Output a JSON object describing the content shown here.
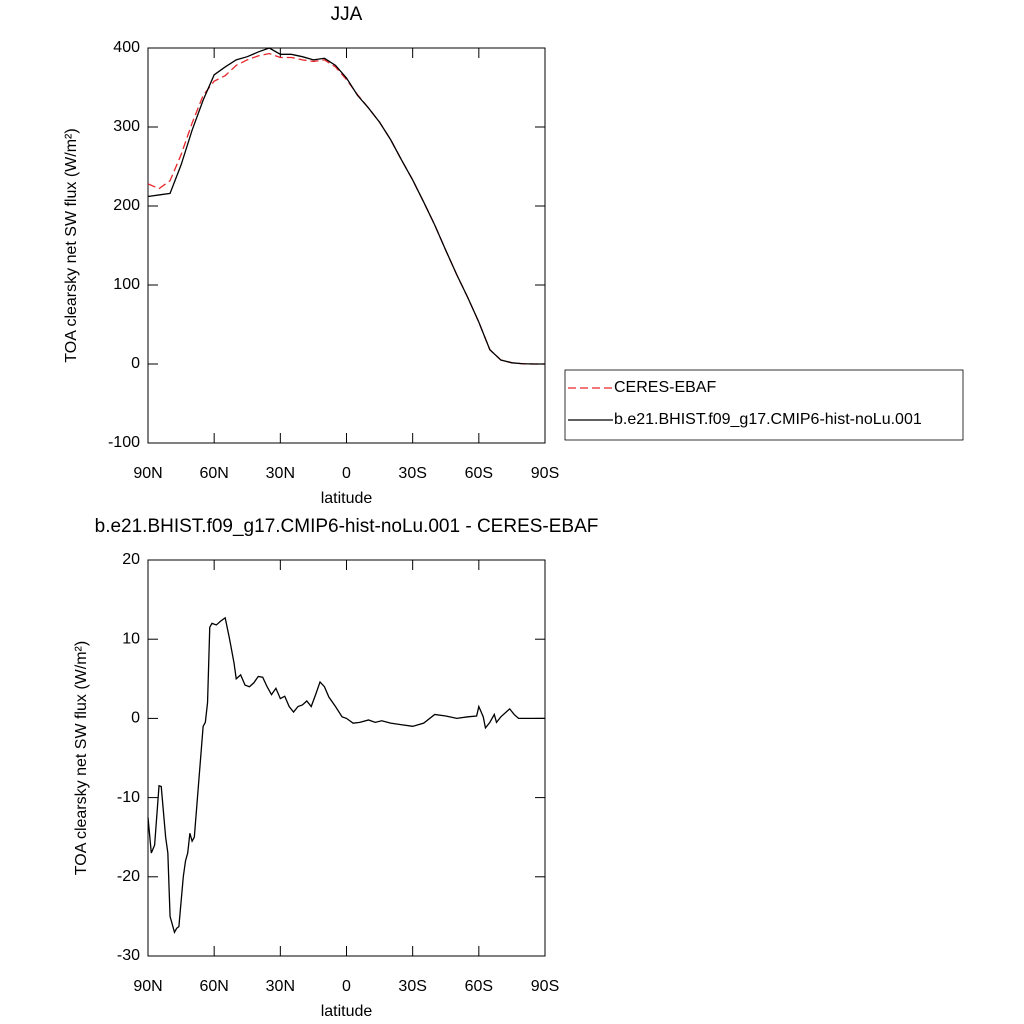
{
  "chart_data": [
    {
      "type": "line",
      "title": "JJA",
      "xlabel": "latitude",
      "ylabel": "TOA clearsky net SW flux (W/m²)",
      "x": [
        90,
        85,
        80,
        75,
        70,
        65,
        60,
        55,
        50,
        45,
        40,
        35,
        30,
        25,
        20,
        15,
        10,
        5,
        0,
        -5,
        -10,
        -15,
        -20,
        -25,
        -30,
        -35,
        -40,
        -45,
        -50,
        -55,
        -60,
        -65,
        -70,
        -75,
        -80,
        -85,
        -90
      ],
      "series": [
        {
          "name": "CERES-EBAF",
          "color": "#e8262a",
          "line_style": "dashed",
          "values": [
            228,
            222,
            232,
            265,
            305,
            340,
            358,
            365,
            378,
            385,
            390,
            393,
            388,
            388,
            385,
            383,
            385,
            376,
            360,
            341,
            324,
            306,
            284,
            258,
            233,
            205,
            176,
            144,
            113,
            84,
            53,
            18,
            5,
            1.5,
            0.3,
            0,
            0
          ]
        },
        {
          "name": "b.e21.BHIST.f09_g17.CMIP6-hist-noLu.001",
          "color": "#000000",
          "line_style": "solid",
          "values": [
            212,
            214,
            216,
            252,
            296,
            334,
            366,
            376,
            385,
            389,
            395,
            400,
            392,
            392,
            389,
            385,
            387,
            378,
            362,
            340,
            324,
            306,
            284,
            258,
            233,
            205,
            176,
            144,
            113,
            84,
            53,
            18,
            5,
            1.5,
            0.3,
            0,
            0
          ]
        }
      ],
      "xlim": [
        90,
        -90
      ],
      "xticks": [
        {
          "value": 90,
          "label": "90N"
        },
        {
          "value": 60,
          "label": "60N"
        },
        {
          "value": 30,
          "label": "30N"
        },
        0,
        {
          "value": -30,
          "label": "30S"
        },
        {
          "value": -60,
          "label": "60S"
        },
        {
          "value": -90,
          "label": "90S"
        }
      ],
      "ylim": [
        -100,
        400
      ],
      "yticks": [
        -100,
        0,
        100,
        200,
        300,
        400
      ],
      "legend": "right"
    },
    {
      "type": "line",
      "title": "b.e21.BHIST.f09_g17.CMIP6-hist-noLu.001 - CERES-EBAF",
      "xlabel": "latitude",
      "ylabel": "TOA clearsky net SW flux (W/m²)",
      "x": [
        90,
        88.5,
        87,
        85,
        84,
        82,
        81,
        80,
        79,
        78,
        77,
        76,
        74,
        73,
        72,
        71,
        70,
        69,
        67,
        65,
        64,
        63,
        62,
        61,
        59,
        57,
        55,
        53,
        51,
        50,
        48,
        46,
        44,
        42,
        40,
        38,
        36,
        34,
        32,
        30,
        28,
        26,
        24,
        22,
        20,
        18,
        16,
        14,
        12,
        10,
        8,
        5,
        2,
        0,
        -3,
        -6,
        -10,
        -13,
        -16,
        -20,
        -25,
        -30,
        -35,
        -40,
        -45,
        -50,
        -55,
        -59,
        -60,
        -62,
        -63,
        -65,
        -67,
        -68,
        -70,
        -74,
        -76,
        -78,
        -90
      ],
      "series": [
        {
          "color": "#000000",
          "line_style": "solid",
          "values": [
            -12.5,
            -17,
            -16,
            -8.5,
            -8.6,
            -15,
            -17,
            -25,
            -26,
            -27,
            -26.5,
            -26.3,
            -20,
            -18,
            -17,
            -14.5,
            -15.5,
            -15,
            -8,
            -1,
            -0.5,
            2,
            11.5,
            12,
            11.8,
            12.3,
            12.7,
            10,
            7,
            5,
            5.5,
            4.2,
            4,
            4.5,
            5.3,
            5.2,
            4,
            3,
            3.8,
            2.5,
            2.8,
            1.5,
            0.8,
            1.5,
            1.7,
            2.2,
            1.5,
            3,
            4.6,
            4,
            2.7,
            1.5,
            0.2,
            0,
            -0.6,
            -0.5,
            -0.2,
            -0.5,
            -0.3,
            -0.6,
            -0.8,
            -1,
            -0.6,
            0.5,
            0.3,
            0,
            0.2,
            0.3,
            1.5,
            0.2,
            -1.2,
            -0.5,
            0.5,
            -0.5,
            0.2,
            1.2,
            0.5,
            0,
            0
          ]
        }
      ],
      "xlim": [
        90,
        -90
      ],
      "xticks": [
        {
          "value": 90,
          "label": "90N"
        },
        {
          "value": 60,
          "label": "60N"
        },
        {
          "value": 30,
          "label": "30N"
        },
        0,
        {
          "value": -30,
          "label": "30S"
        },
        {
          "value": -60,
          "label": "60S"
        },
        {
          "value": -90,
          "label": "90S"
        }
      ],
      "ylim": [
        -30,
        20
      ],
      "yticks": [
        -30,
        -20,
        -10,
        0,
        10,
        20
      ]
    }
  ]
}
